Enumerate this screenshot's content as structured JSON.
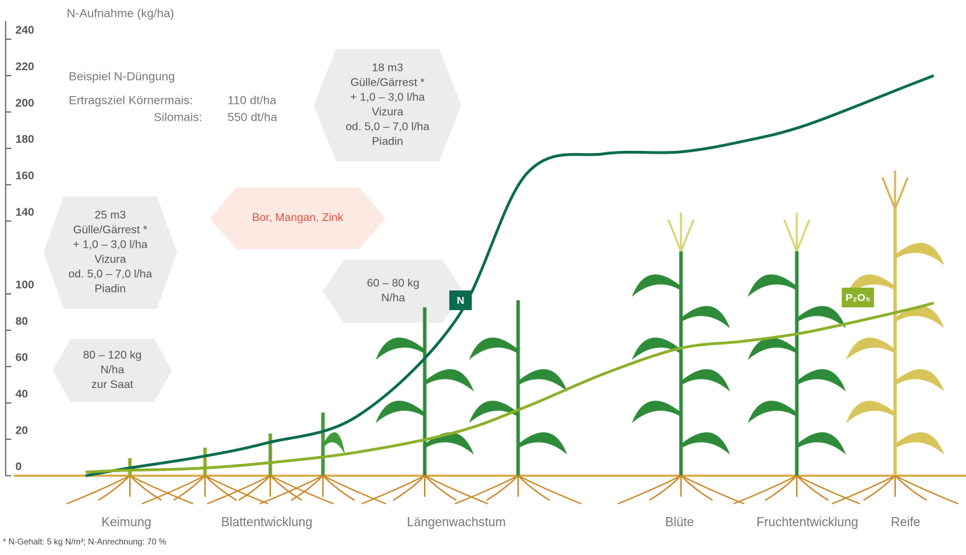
{
  "chart_data": {
    "type": "line",
    "y_axis_label": "N-Aufnahme (kg/ha)",
    "ylim": [
      0,
      250
    ],
    "yticks": [
      0,
      20,
      40,
      60,
      80,
      100,
      140,
      160,
      180,
      200,
      220,
      240
    ],
    "categories": [
      null,
      "Keimung",
      null,
      "Blattentwicklung",
      null,
      "Längenwachstum",
      null,
      null,
      "Blüte",
      null,
      "Fruchtentwicklung",
      "Reife",
      null
    ],
    "series": [
      {
        "name": "N",
        "color": "#0a6b4f",
        "values": [
          0,
          4,
          10,
          18,
          33,
          86,
          166,
          177,
          178,
          184,
          193,
          214,
          220
        ]
      },
      {
        "name": "P₂O₅",
        "color": "#8cb02a",
        "values": [
          2,
          3,
          4,
          7,
          13,
          24,
          38,
          56,
          70,
          74,
          79,
          91,
          95
        ]
      }
    ],
    "example": {
      "title": "Beispiel N-Düngung",
      "rows": [
        [
          "Ertragsziel Körnermais:",
          "110 dt/ha"
        ],
        [
          "Silomais:",
          "550 dt/ha"
        ]
      ]
    },
    "annotations": [
      {
        "lines": [
          "18 m3",
          "Gülle/Gärrest *",
          "+ 1,0 – 3,0 l/ha",
          "Vizura",
          "od. 5,0 – 7,0 l/ha",
          "Piadin"
        ]
      },
      {
        "lines": [
          "Bor, Mangan, Zink"
        ]
      },
      {
        "lines": [
          "25 m3",
          "Gülle/Gärrest *",
          "+ 1,0 – 3,0 l/ha",
          "Vizura",
          "od. 5,0 – 7,0 l/ha",
          "Piadin"
        ]
      },
      {
        "lines": [
          "60 – 80 kg",
          "N/ha"
        ]
      },
      {
        "lines": [
          "80 – 120 kg",
          "N/ha",
          "zur Saat"
        ]
      }
    ],
    "footnote": "* N-Gehalt: 5 kg N/m³; N-Anrechnung: 70 %"
  }
}
